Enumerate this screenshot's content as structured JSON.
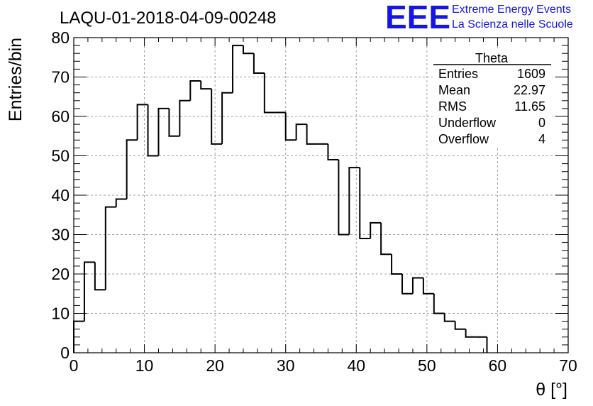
{
  "header": {
    "title": "LAQU-01-2018-04-09-00248",
    "logo_text": "EEE",
    "logo_line1": "Extreme Energy Events",
    "logo_line2": "La Scienza nelle Scuole",
    "logo_color": "#1515e6"
  },
  "stats_box": {
    "title": "Theta",
    "rows": [
      {
        "label": "Entries",
        "value": "1609"
      },
      {
        "label": "Mean",
        "value": "22.97"
      },
      {
        "label": "RMS",
        "value": "11.65"
      },
      {
        "label": "Underflow",
        "value": "0"
      },
      {
        "label": "Overflow",
        "value": "4"
      }
    ]
  },
  "chart_data": {
    "type": "histogram",
    "title": "LAQU-01-2018-04-09-00248",
    "xlabel": "θ [°]",
    "ylabel": "Entries/bin",
    "xlim": [
      0,
      70
    ],
    "ylim": [
      0,
      80
    ],
    "bin_width": 1.5,
    "bin_start": 0,
    "values": [
      8,
      23,
      16,
      37,
      39,
      54,
      63,
      50,
      62,
      55,
      64,
      69,
      67,
      53,
      66,
      78,
      76,
      71,
      61,
      61,
      54,
      58,
      53,
      53,
      49,
      30,
      47,
      29,
      33,
      25,
      20,
      15,
      19,
      15,
      10,
      8,
      6,
      4,
      4
    ],
    "x_ticks": [
      0,
      10,
      20,
      30,
      40,
      50,
      60,
      70
    ],
    "y_ticks": [
      0,
      10,
      20,
      30,
      40,
      50,
      60,
      70,
      80
    ],
    "grid": true,
    "legend": "stats box top-right"
  }
}
